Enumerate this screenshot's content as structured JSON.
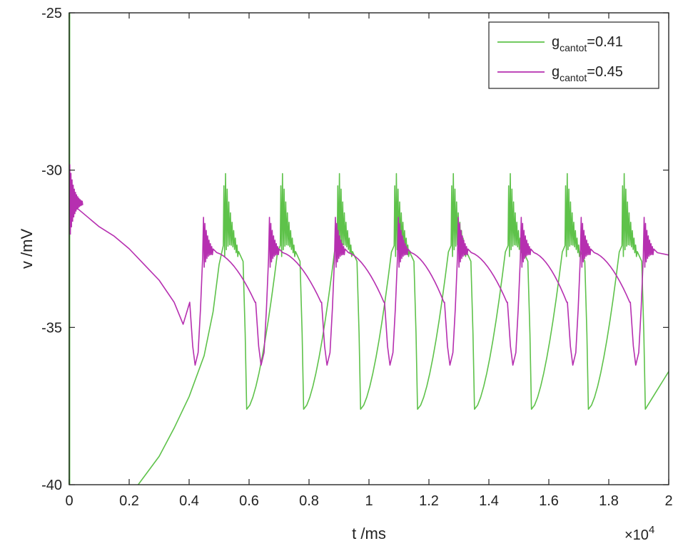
{
  "chart_data": {
    "type": "line",
    "xlabel": "t /ms",
    "ylabel": "v /mV",
    "x_multiplier": {
      "prefix": "×10",
      "exponent": "4"
    },
    "xlim": [
      0,
      2
    ],
    "ylim": [
      -40,
      -25
    ],
    "x_ticks": [
      0,
      0.2,
      0.4,
      0.6,
      0.8,
      1,
      1.2,
      1.4,
      1.6,
      1.8,
      2
    ],
    "x_tick_labels": [
      "0",
      "0.2",
      "0.4",
      "0.6",
      "0.8",
      "1",
      "1.2",
      "1.4",
      "1.6",
      "1.8",
      "2"
    ],
    "y_ticks": [
      -40,
      -35,
      -30,
      -25
    ],
    "y_tick_labels": [
      "-40",
      "-35",
      "-30",
      "-25"
    ],
    "grid": false,
    "legend_position": "top-right",
    "series": [
      {
        "name_parts": {
          "base": "g",
          "sub": "cantot",
          "suffix": "=0.41"
        },
        "color": "#5ec24a",
        "initial_spike": {
          "x": 0.0005,
          "y_top": -25,
          "y_bottom": -40
        },
        "entry": [
          [
            0.23,
            -40
          ],
          [
            0.3,
            -39.1
          ],
          [
            0.35,
            -38.2
          ],
          [
            0.4,
            -37.2
          ],
          [
            0.45,
            -35.9
          ],
          [
            0.48,
            -34.5
          ],
          [
            0.5,
            -33
          ]
        ],
        "spike_times": [
          0.52,
          0.71,
          0.9,
          1.09,
          1.28,
          1.47,
          1.66,
          1.85
        ],
        "spike_peak": -30.5,
        "spike_trough": -37.6,
        "end_value": -36.4
      },
      {
        "name_parts": {
          "base": "g",
          "sub": "cantot",
          "suffix": "=0.45"
        },
        "color": "#b62fb0",
        "entry": [
          [
            0,
            -31
          ],
          [
            0.05,
            -31.4
          ],
          [
            0.1,
            -31.8
          ],
          [
            0.15,
            -32.1
          ],
          [
            0.2,
            -32.5
          ],
          [
            0.25,
            -33
          ],
          [
            0.3,
            -33.5
          ],
          [
            0.35,
            -34.2
          ],
          [
            0.38,
            -34.9
          ]
        ],
        "spike_times": [
          0.45,
          0.67,
          0.89,
          1.1,
          1.3,
          1.51,
          1.71,
          1.92
        ],
        "spike_peak": -31.5,
        "spike_trough": -36.2,
        "end_value": -32.7
      }
    ]
  }
}
